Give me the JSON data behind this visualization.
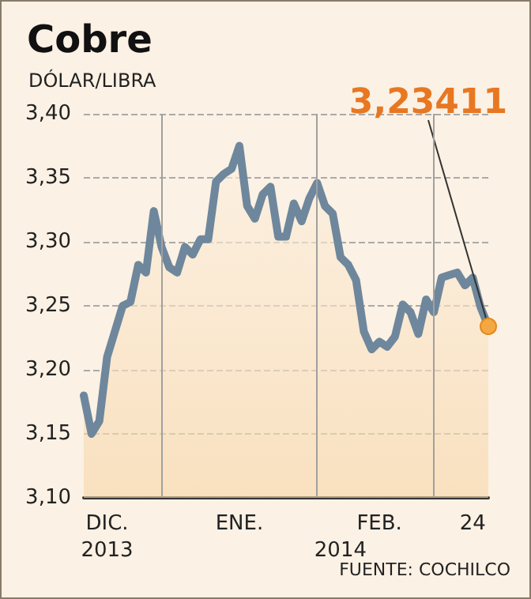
{
  "chart_data": {
    "type": "area",
    "title": "Cobre",
    "subtitle": "DÓLAR/LIBRA",
    "annotations": [
      "FUENTE: COCHILCO"
    ],
    "categories": [
      null,
      null,
      null,
      "DIC.\n2013",
      null,
      null,
      null,
      null,
      null,
      null,
      null,
      null,
      null,
      null,
      null,
      null,
      null,
      null,
      null,
      null,
      "ENE.",
      null,
      null,
      null,
      null,
      null,
      null,
      null,
      null,
      null,
      null,
      null,
      null,
      "2014",
      null,
      null,
      null,
      null,
      "FEB.",
      null,
      null,
      null,
      null,
      null,
      null,
      null,
      null,
      null,
      null,
      null,
      "24",
      null,
      null
    ],
    "series": [
      {
        "color": "#6e879c",
        "values": [
          3.18,
          3.15,
          3.16,
          3.21,
          3.23,
          3.25,
          3.253,
          3.282,
          3.276,
          3.324,
          3.296,
          3.28,
          3.276,
          3.296,
          3.29,
          3.302,
          3.302,
          3.347,
          3.353,
          3.357,
          3.375,
          3.328,
          3.318,
          3.337,
          3.343,
          3.304,
          3.304,
          3.33,
          3.316,
          3.334,
          3.346,
          3.328,
          3.322,
          3.288,
          3.282,
          3.27,
          3.23,
          3.216,
          3.222,
          3.218,
          3.226,
          3.251,
          3.245,
          3.228,
          3.255,
          3.245,
          3.272,
          3.274,
          3.276,
          3.266,
          3.272,
          3.249,
          3.234
        ],
        "value_labels": [
          null,
          null,
          null,
          null,
          null,
          null,
          null,
          null,
          null,
          null,
          null,
          null,
          null,
          null,
          null,
          null,
          null,
          null,
          null,
          null,
          null,
          null,
          null,
          null,
          null,
          null,
          null,
          null,
          null,
          null,
          null,
          null,
          null,
          null,
          null,
          null,
          null,
          null,
          null,
          null,
          null,
          null,
          null,
          null,
          null,
          null,
          null,
          null,
          null,
          null,
          null,
          null,
          "3,23411"
        ]
      }
    ],
    "ylim": [
      3.1,
      3.4
    ],
    "yticks": [
      {
        "value": 3.1,
        "label": "3,10"
      },
      {
        "value": 3.15,
        "label": "3,15"
      },
      {
        "value": 3.2,
        "label": "3,20"
      },
      {
        "value": 3.25,
        "label": "3,25"
      },
      {
        "value": 3.3,
        "label": "3,30"
      },
      {
        "value": 3.35,
        "label": "3,35"
      },
      {
        "value": 3.4,
        "label": "3,40"
      }
    ],
    "grid": "y",
    "marker": "none",
    "line_style": "solid"
  }
}
